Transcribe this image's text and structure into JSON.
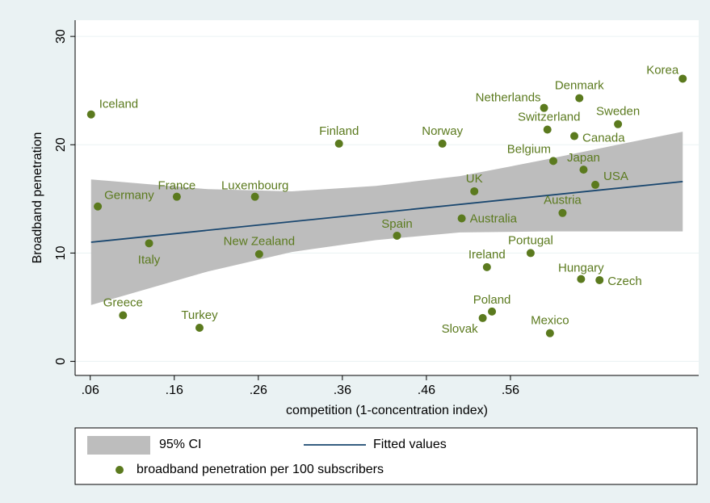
{
  "chart_data": {
    "type": "scatter",
    "xlabel": "competition (1-concentration index)",
    "ylabel": "Broadband penetration",
    "xlim": [
      0.042,
      0.784
    ],
    "ylim": [
      -1.3,
      31.5
    ],
    "xticks": [
      {
        "value": 0.06,
        "label": ".06"
      },
      {
        "value": 0.16,
        "label": ".16"
      },
      {
        "value": 0.26,
        "label": ".26"
      },
      {
        "value": 0.36,
        "label": ".36"
      },
      {
        "value": 0.46,
        "label": ".46"
      },
      {
        "value": 0.56,
        "label": ".56"
      }
    ],
    "yticks": [
      0,
      10,
      20,
      30
    ],
    "grid": true,
    "series": [
      {
        "name": "95% CI",
        "type": "area",
        "color": "#bdbdbd",
        "x": [
          0.061,
          0.2,
          0.3,
          0.4,
          0.5,
          0.6,
          0.7,
          0.765
        ],
        "upper": [
          16.8,
          15.9,
          15.7,
          16.2,
          17.1,
          18.6,
          20.2,
          21.2
        ],
        "lower": [
          5.2,
          8.3,
          10.1,
          11.2,
          11.9,
          12.0,
          12.0,
          12.0
        ]
      },
      {
        "name": "Fitted values",
        "type": "line",
        "color": "#1a476f",
        "x": [
          0.061,
          0.765
        ],
        "values": [
          11.0,
          16.6
        ]
      },
      {
        "name": "broadband penetration per 100 subscribers",
        "type": "points",
        "color": "#5b7a1e",
        "labels": [
          "Iceland",
          "Germany",
          "Greece",
          "Italy",
          "France",
          "Turkey",
          "Luxembourg",
          "New Zealand",
          "Finland",
          "Spain",
          "Norway",
          "Australia",
          "UK",
          "Ireland",
          "Poland",
          "Slovak",
          "Portugal",
          "Mexico",
          "Netherlands",
          "Switzerland",
          "Belgium",
          "Denmark",
          "Canada",
          "Japan",
          "Austria",
          "Hungary",
          "USA",
          "Czech",
          "Sweden",
          "Korea"
        ],
        "x": [
          0.061,
          0.069,
          0.099,
          0.13,
          0.163,
          0.19,
          0.256,
          0.261,
          0.356,
          0.425,
          0.479,
          0.502,
          0.517,
          0.532,
          0.538,
          0.527,
          0.584,
          0.607,
          0.6,
          0.604,
          0.611,
          0.642,
          0.636,
          0.647,
          0.622,
          0.644,
          0.661,
          0.666,
          0.688,
          0.765
        ],
        "values": [
          22.8,
          14.3,
          4.25,
          10.9,
          15.2,
          3.1,
          15.2,
          9.9,
          20.1,
          11.6,
          20.1,
          13.2,
          15.7,
          8.7,
          4.6,
          4.0,
          10.0,
          2.6,
          23.4,
          21.4,
          18.5,
          24.3,
          20.8,
          17.7,
          13.7,
          7.6,
          16.3,
          7.5,
          21.9,
          26.1
        ]
      }
    ]
  }
}
